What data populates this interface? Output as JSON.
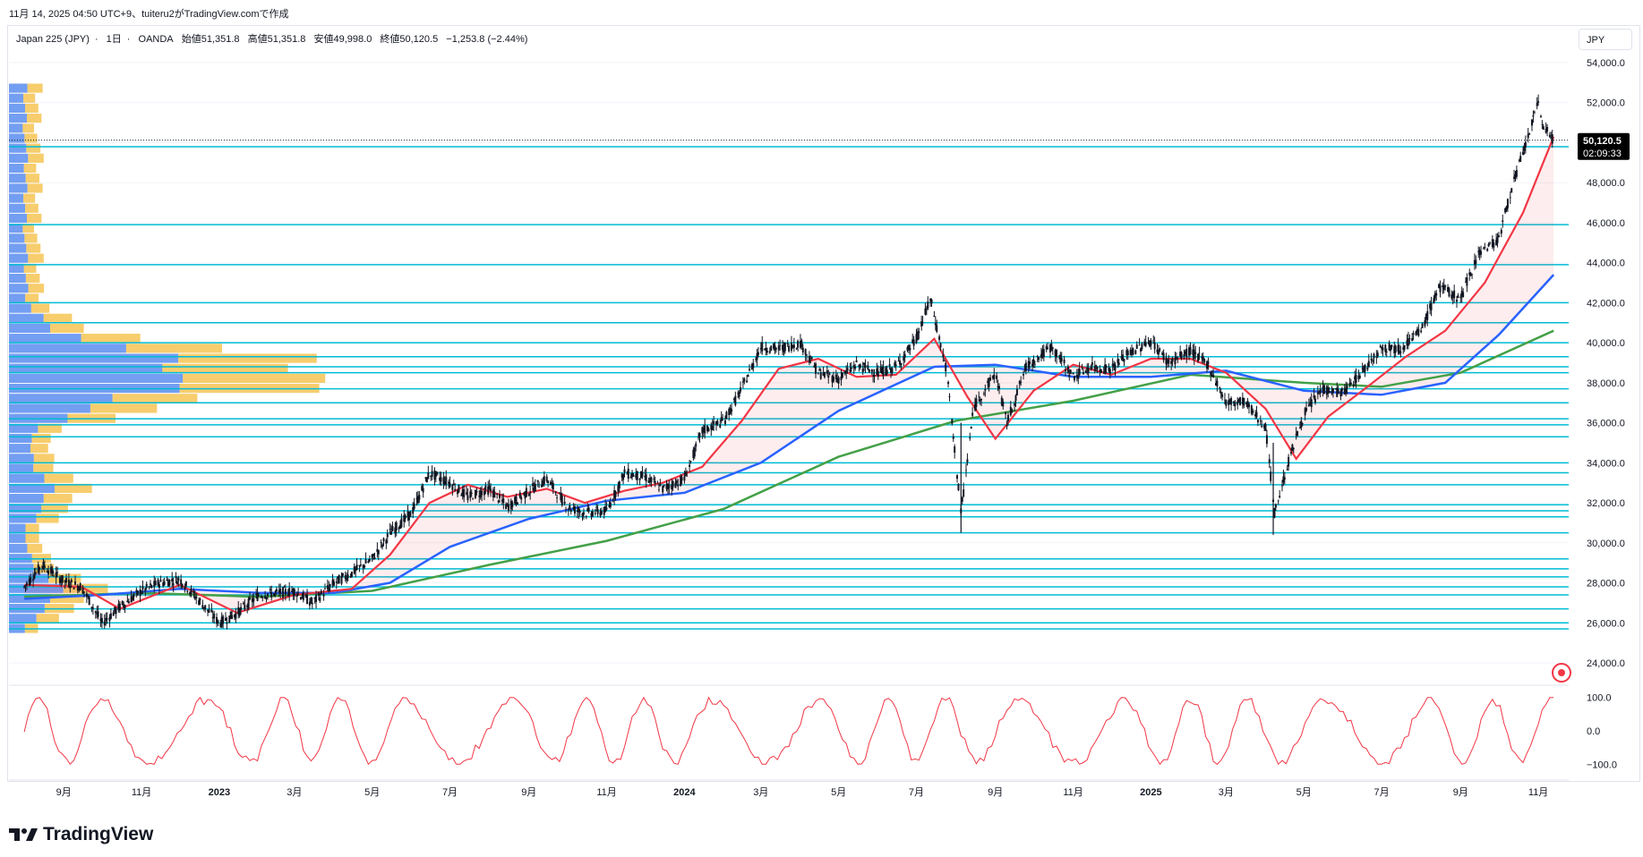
{
  "caption": "11月 14, 2025 04:50 UTC+9、tuiteru2がTradingView.comで作成",
  "legend": {
    "symbol": "Japan 225 (JPY)",
    "interval": "1日",
    "source": "OANDA",
    "open": "始値51,351.8",
    "high": "高値51,351.8",
    "low": "安値49,998.0",
    "close": "終値50,120.5",
    "change": "−1,253.8 (−2.44%)"
  },
  "currency": "JPY",
  "price_tag": {
    "value": "50,120.5",
    "countdown": "02:09:33"
  },
  "brand": "TradingView",
  "colors": {
    "candle": "#131722",
    "ma_short": "#f23645",
    "ma_mid": "#2962ff",
    "ma_long": "#43a047",
    "hline": "#00bcd4",
    "oscillator": "#f23645",
    "vp_blue": "#5b8def",
    "vp_yellow": "#f6c453"
  },
  "chart_data": [
    {
      "type": "line",
      "title": "Japan 225 (JPY) 1日 OANDA",
      "y_ticks": [
        "54,000.0",
        "52,000.0",
        "50,000.0",
        "48,000.0",
        "46,000.0",
        "44,000.0",
        "42,000.0",
        "40,000.0",
        "38,000.0",
        "36,000.0",
        "34,000.0",
        "32,000.0",
        "30,000.0",
        "28,000.0",
        "26,000.0",
        "24,000.0"
      ],
      "ylim": [
        23000,
        55500
      ],
      "x_ticks": [
        {
          "label": "9月",
          "bold": false
        },
        {
          "label": "11月",
          "bold": false
        },
        {
          "label": "2023",
          "bold": true
        },
        {
          "label": "3月",
          "bold": false
        },
        {
          "label": "5月",
          "bold": false
        },
        {
          "label": "7月",
          "bold": false
        },
        {
          "label": "9月",
          "bold": false
        },
        {
          "label": "11月",
          "bold": false
        },
        {
          "label": "2024",
          "bold": true
        },
        {
          "label": "3月",
          "bold": false
        },
        {
          "label": "5月",
          "bold": false
        },
        {
          "label": "7月",
          "bold": false
        },
        {
          "label": "9月",
          "bold": false
        },
        {
          "label": "11月",
          "bold": false
        },
        {
          "label": "2025",
          "bold": true
        },
        {
          "label": "3月",
          "bold": false
        },
        {
          "label": "5月",
          "bold": false
        },
        {
          "label": "7月",
          "bold": false
        },
        {
          "label": "9月",
          "bold": false
        },
        {
          "label": "11月",
          "bold": false
        }
      ],
      "price_series": [
        [
          "2022-08-01",
          27800
        ],
        [
          "2022-08-15",
          28900
        ],
        [
          "2022-09-01",
          28100
        ],
        [
          "2022-09-15",
          27800
        ],
        [
          "2022-10-01",
          26000
        ],
        [
          "2022-10-15",
          26800
        ],
        [
          "2022-11-01",
          27600
        ],
        [
          "2022-11-15",
          28000
        ],
        [
          "2022-12-01",
          28200
        ],
        [
          "2022-12-15",
          27200
        ],
        [
          "2023-01-01",
          26000
        ],
        [
          "2023-01-15",
          26500
        ],
        [
          "2023-02-01",
          27400
        ],
        [
          "2023-02-15",
          27500
        ],
        [
          "2023-03-01",
          27600
        ],
        [
          "2023-03-15",
          27000
        ],
        [
          "2023-04-01",
          28000
        ],
        [
          "2023-04-15",
          28500
        ],
        [
          "2023-05-01",
          29200
        ],
        [
          "2023-05-15",
          30500
        ],
        [
          "2023-06-01",
          31500
        ],
        [
          "2023-06-15",
          33500
        ],
        [
          "2023-07-01",
          33000
        ],
        [
          "2023-07-15",
          32300
        ],
        [
          "2023-08-01",
          32700
        ],
        [
          "2023-08-15",
          31800
        ],
        [
          "2023-09-01",
          32600
        ],
        [
          "2023-09-15",
          33200
        ],
        [
          "2023-10-01",
          31800
        ],
        [
          "2023-10-15",
          31500
        ],
        [
          "2023-11-01",
          31600
        ],
        [
          "2023-11-15",
          33500
        ],
        [
          "2023-12-01",
          33300
        ],
        [
          "2023-12-15",
          32700
        ],
        [
          "2024-01-01",
          33200
        ],
        [
          "2024-01-15",
          35600
        ],
        [
          "2024-02-01",
          36100
        ],
        [
          "2024-02-15",
          37700
        ],
        [
          "2024-03-01",
          39800
        ],
        [
          "2024-03-15",
          39700
        ],
        [
          "2024-04-01",
          40000
        ],
        [
          "2024-04-15",
          38500
        ],
        [
          "2024-05-01",
          38200
        ],
        [
          "2024-05-15",
          38900
        ],
        [
          "2024-06-01",
          38500
        ],
        [
          "2024-06-15",
          38800
        ],
        [
          "2024-07-01",
          40200
        ],
        [
          "2024-07-12",
          42200
        ],
        [
          "2024-07-25",
          38500
        ],
        [
          "2024-08-05",
          31500
        ],
        [
          "2024-08-15",
          36800
        ],
        [
          "2024-09-01",
          38500
        ],
        [
          "2024-09-10",
          36000
        ],
        [
          "2024-09-25",
          38800
        ],
        [
          "2024-10-15",
          39800
        ],
        [
          "2024-11-01",
          38300
        ],
        [
          "2024-11-15",
          38800
        ],
        [
          "2024-12-01",
          38700
        ],
        [
          "2024-12-15",
          39500
        ],
        [
          "2025-01-01",
          40100
        ],
        [
          "2025-01-15",
          39000
        ],
        [
          "2025-02-01",
          39600
        ],
        [
          "2025-02-15",
          38900
        ],
        [
          "2025-03-01",
          37000
        ],
        [
          "2025-03-15",
          37100
        ],
        [
          "2025-04-01",
          35800
        ],
        [
          "2025-04-08",
          31500
        ],
        [
          "2025-04-20",
          34300
        ],
        [
          "2025-05-01",
          36400
        ],
        [
          "2025-05-15",
          37700
        ],
        [
          "2025-06-01",
          37500
        ],
        [
          "2025-06-15",
          38500
        ],
        [
          "2025-07-01",
          39800
        ],
        [
          "2025-07-15",
          39700
        ],
        [
          "2025-08-01",
          40600
        ],
        [
          "2025-08-15",
          42800
        ],
        [
          "2025-09-01",
          42200
        ],
        [
          "2025-09-15",
          44500
        ],
        [
          "2025-10-01",
          45200
        ],
        [
          "2025-10-10",
          47500
        ],
        [
          "2025-10-20",
          49500
        ],
        [
          "2025-11-01",
          52000
        ],
        [
          "2025-11-05",
          50800
        ],
        [
          "2025-11-13",
          50120.5
        ]
      ],
      "ma_short": [
        [
          "2022-08-01",
          27900
        ],
        [
          "2022-09-15",
          27800
        ],
        [
          "2022-10-15",
          26700
        ],
        [
          "2022-12-01",
          27900
        ],
        [
          "2023-01-15",
          26500
        ],
        [
          "2023-03-01",
          27400
        ],
        [
          "2023-04-15",
          27700
        ],
        [
          "2023-05-15",
          29400
        ],
        [
          "2023-06-15",
          32000
        ],
        [
          "2023-07-15",
          32900
        ],
        [
          "2023-08-15",
          32300
        ],
        [
          "2023-09-15",
          32700
        ],
        [
          "2023-10-15",
          32000
        ],
        [
          "2023-11-15",
          32600
        ],
        [
          "2023-12-15",
          33000
        ],
        [
          "2024-01-15",
          33800
        ],
        [
          "2024-02-15",
          36100
        ],
        [
          "2024-03-15",
          38700
        ],
        [
          "2024-04-15",
          39200
        ],
        [
          "2024-05-15",
          38300
        ],
        [
          "2024-06-15",
          38400
        ],
        [
          "2024-07-15",
          40200
        ],
        [
          "2024-08-10",
          37300
        ],
        [
          "2024-09-01",
          35200
        ],
        [
          "2024-10-01",
          37600
        ],
        [
          "2024-11-01",
          38900
        ],
        [
          "2024-12-01",
          38400
        ],
        [
          "2025-01-01",
          39200
        ],
        [
          "2025-02-01",
          39200
        ],
        [
          "2025-03-01",
          38500
        ],
        [
          "2025-04-01",
          36700
        ],
        [
          "2025-04-25",
          34200
        ],
        [
          "2025-05-20",
          36300
        ],
        [
          "2025-06-20",
          37800
        ],
        [
          "2025-07-20",
          39300
        ],
        [
          "2025-08-20",
          40600
        ],
        [
          "2025-09-20",
          43000
        ],
        [
          "2025-10-20",
          46500
        ],
        [
          "2025-11-13",
          50300
        ]
      ],
      "ma_mid": [
        [
          "2022-08-01",
          27200
        ],
        [
          "2022-10-01",
          27400
        ],
        [
          "2022-12-01",
          27700
        ],
        [
          "2023-02-01",
          27500
        ],
        [
          "2023-04-01",
          27500
        ],
        [
          "2023-05-15",
          28000
        ],
        [
          "2023-07-01",
          29800
        ],
        [
          "2023-09-01",
          31200
        ],
        [
          "2023-11-01",
          32100
        ],
        [
          "2024-01-01",
          32500
        ],
        [
          "2024-03-01",
          34000
        ],
        [
          "2024-05-01",
          36600
        ],
        [
          "2024-07-15",
          38800
        ],
        [
          "2024-09-01",
          38900
        ],
        [
          "2024-11-01",
          38300
        ],
        [
          "2025-01-01",
          38300
        ],
        [
          "2025-03-01",
          38600
        ],
        [
          "2025-05-01",
          37600
        ],
        [
          "2025-07-01",
          37400
        ],
        [
          "2025-08-20",
          38000
        ],
        [
          "2025-10-01",
          40400
        ],
        [
          "2025-11-13",
          43400
        ]
      ],
      "ma_long": [
        [
          "2022-08-01",
          27300
        ],
        [
          "2022-11-01",
          27500
        ],
        [
          "2023-02-01",
          27300
        ],
        [
          "2023-05-01",
          27600
        ],
        [
          "2023-08-01",
          28900
        ],
        [
          "2023-11-01",
          30100
        ],
        [
          "2024-02-01",
          31700
        ],
        [
          "2024-05-01",
          34300
        ],
        [
          "2024-08-01",
          36100
        ],
        [
          "2024-11-01",
          37100
        ],
        [
          "2025-02-01",
          38400
        ],
        [
          "2025-05-01",
          38000
        ],
        [
          "2025-07-01",
          37800
        ],
        [
          "2025-09-01",
          38500
        ],
        [
          "2025-11-13",
          40600
        ]
      ],
      "horizontal_levels": [
        49800,
        45900,
        43900,
        42000,
        41000,
        40000,
        39300,
        38800,
        38500,
        37700,
        37000,
        36200,
        35900,
        35300,
        34000,
        33500,
        32900,
        31900,
        31600,
        31300,
        30500,
        29200,
        28700,
        28300,
        27800,
        27400,
        26700,
        26000,
        25700
      ],
      "volume_profile_note": "visible range volume profile at left edge",
      "oscillator": {
        "y_ticks": [
          "100.0",
          "0.0",
          "−100.0"
        ],
        "ylim": [
          -110,
          110
        ]
      }
    }
  ]
}
